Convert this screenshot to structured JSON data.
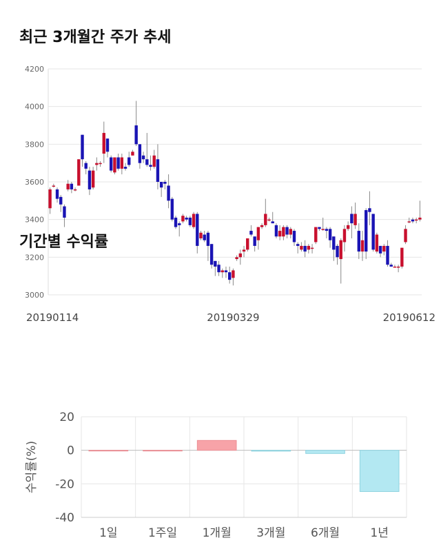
{
  "sections": {
    "price_title": "최근 3개월간 주가 추세",
    "returns_title": "기간별 수익률"
  },
  "colors": {
    "up": "#c8102e",
    "down": "#1a14b4",
    "bar_pos": "#f7a3a8",
    "bar_neg": "#b3e8f2",
    "grid": "#e6e6e6"
  },
  "chart_data": [
    {
      "type": "candlestick",
      "title": "최근 3개월간 주가 추세",
      "yticks": [
        "4200",
        "4000",
        "3800",
        "3600",
        "3400",
        "3200",
        "3000"
      ],
      "ylim": [
        3000,
        4200
      ],
      "x_tick_labels": [
        {
          "label": "20190114",
          "index": 0
        },
        {
          "label": "20190329",
          "index": 51
        },
        {
          "label": "20190612",
          "index": 102
        }
      ],
      "candles": [
        [
          3460,
          3560,
          3430,
          3570
        ],
        [
          3580,
          3580,
          3570,
          3590
        ],
        [
          3560,
          3510,
          3490,
          3570
        ],
        [
          3520,
          3480,
          3440,
          3530
        ],
        [
          3470,
          3410,
          3360,
          3480
        ],
        [
          3560,
          3590,
          3550,
          3610
        ],
        [
          3590,
          3560,
          3540,
          3600
        ],
        [
          3560,
          3560,
          3550,
          3570
        ],
        [
          3580,
          3720,
          3580,
          3720
        ],
        [
          3850,
          3720,
          3680,
          3850
        ],
        [
          3700,
          3670,
          3640,
          3710
        ],
        [
          3660,
          3560,
          3530,
          3680
        ],
        [
          3570,
          3660,
          3560,
          3680
        ],
        [
          3690,
          3700,
          3660,
          3730
        ],
        [
          3700,
          3700,
          3680,
          3710
        ],
        [
          3750,
          3860,
          3700,
          3920
        ],
        [
          3830,
          3760,
          3730,
          3830
        ],
        [
          3730,
          3660,
          3650,
          3740
        ],
        [
          3650,
          3730,
          3640,
          3730
        ],
        [
          3730,
          3670,
          3660,
          3750
        ],
        [
          3670,
          3730,
          3640,
          3750
        ],
        [
          3680,
          3670,
          3660,
          3700
        ],
        [
          3730,
          3690,
          3680,
          3760
        ],
        [
          3740,
          3760,
          3740,
          3770
        ],
        [
          3900,
          3800,
          3790,
          4030
        ],
        [
          3800,
          3700,
          3670,
          3800
        ],
        [
          3740,
          3720,
          3700,
          3760
        ],
        [
          3720,
          3690,
          3680,
          3860
        ],
        [
          3690,
          3680,
          3660,
          3740
        ],
        [
          3680,
          3740,
          3670,
          3770
        ],
        [
          3720,
          3600,
          3560,
          3800
        ],
        [
          3600,
          3570,
          3520,
          3600
        ],
        [
          3600,
          3590,
          3560,
          3610
        ],
        [
          3580,
          3500,
          3460,
          3640
        ],
        [
          3510,
          3400,
          3390,
          3520
        ],
        [
          3410,
          3360,
          3350,
          3420
        ],
        [
          3380,
          3370,
          3310,
          3390
        ],
        [
          3390,
          3420,
          3380,
          3430
        ],
        [
          3410,
          3400,
          3390,
          3420
        ],
        [
          3410,
          3370,
          3360,
          3420
        ],
        [
          3360,
          3430,
          3350,
          3440
        ],
        [
          3430,
          3260,
          3220,
          3440
        ],
        [
          3300,
          3330,
          3290,
          3340
        ],
        [
          3320,
          3290,
          3280,
          3340
        ],
        [
          3330,
          3260,
          3180,
          3340
        ],
        [
          3270,
          3160,
          3140,
          3270
        ],
        [
          3180,
          3150,
          3100,
          3180
        ],
        [
          3160,
          3120,
          3100,
          3180
        ],
        [
          3120,
          3130,
          3090,
          3140
        ],
        [
          3130,
          3120,
          3090,
          3150
        ],
        [
          3120,
          3080,
          3060,
          3150
        ],
        [
          3090,
          3130,
          3050,
          3140
        ],
        [
          3190,
          3200,
          3180,
          3210
        ],
        [
          3200,
          3220,
          3160,
          3240
        ],
        [
          3230,
          3240,
          3200,
          3260
        ],
        [
          3240,
          3300,
          3230,
          3300
        ],
        [
          3340,
          3320,
          3310,
          3370
        ],
        [
          3310,
          3260,
          3230,
          3310
        ],
        [
          3290,
          3360,
          3240,
          3360
        ],
        [
          3360,
          3370,
          3350,
          3380
        ],
        [
          3370,
          3430,
          3360,
          3510
        ],
        [
          3400,
          3400,
          3390,
          3410
        ],
        [
          3390,
          3380,
          3380,
          3440
        ],
        [
          3370,
          3310,
          3300,
          3380
        ],
        [
          3310,
          3340,
          3290,
          3370
        ],
        [
          3310,
          3360,
          3290,
          3370
        ],
        [
          3360,
          3320,
          3300,
          3370
        ],
        [
          3320,
          3350,
          3300,
          3360
        ],
        [
          3340,
          3280,
          3260,
          3350
        ],
        [
          3270,
          3260,
          3220,
          3280
        ],
        [
          3240,
          3260,
          3230,
          3280
        ],
        [
          3260,
          3230,
          3200,
          3290
        ],
        [
          3240,
          3260,
          3220,
          3270
        ],
        [
          3250,
          3250,
          3220,
          3270
        ],
        [
          3280,
          3360,
          3270,
          3360
        ],
        [
          3360,
          3350,
          3340,
          3360
        ],
        [
          3350,
          3350,
          3340,
          3410
        ],
        [
          3350,
          3340,
          3300,
          3360
        ],
        [
          3350,
          3290,
          3250,
          3360
        ],
        [
          3310,
          3240,
          3180,
          3310
        ],
        [
          3260,
          3200,
          3160,
          3270
        ],
        [
          3190,
          3290,
          3060,
          3300
        ],
        [
          3280,
          3350,
          3230,
          3370
        ],
        [
          3350,
          3370,
          3340,
          3390
        ],
        [
          3430,
          3380,
          3300,
          3470
        ],
        [
          3370,
          3430,
          3350,
          3490
        ],
        [
          3340,
          3230,
          3190,
          3380
        ],
        [
          3230,
          3290,
          3180,
          3340
        ],
        [
          3450,
          3230,
          3190,
          3460
        ],
        [
          3460,
          3440,
          3370,
          3550
        ],
        [
          3430,
          3240,
          3230,
          3430
        ],
        [
          3230,
          3320,
          3220,
          3330
        ],
        [
          3260,
          3220,
          3200,
          3260
        ],
        [
          3230,
          3260,
          3210,
          3270
        ],
        [
          3260,
          3160,
          3150,
          3290
        ],
        [
          3160,
          3150,
          3150,
          3170
        ],
        [
          3150,
          3150,
          3150,
          3160
        ],
        [
          3150,
          3150,
          3120,
          3160
        ],
        [
          3150,
          3250,
          3140,
          3250
        ],
        [
          3280,
          3350,
          3270,
          3370
        ],
        [
          3390,
          3390,
          3380,
          3410
        ],
        [
          3400,
          3390,
          3380,
          3410
        ],
        [
          3400,
          3400,
          3380,
          3410
        ],
        [
          3400,
          3410,
          3390,
          3500
        ]
      ]
    },
    {
      "type": "bar",
      "title": "기간별 수익률",
      "ylabel": "수익률(%)",
      "yticks": [
        "20",
        "0",
        "-20",
        "-40"
      ],
      "ylim": [
        -40,
        20
      ],
      "categories": [
        "1일",
        "1주일",
        "1개월",
        "3개월",
        "6개월",
        "1년"
      ],
      "values": [
        0.0,
        0.0,
        5.9,
        -0.5,
        -1.9,
        -24.6
      ]
    }
  ]
}
